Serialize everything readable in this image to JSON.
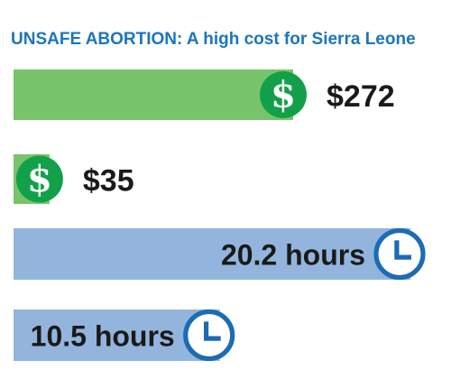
{
  "title": "UNSAFE ABORTION: A high cost for Sierra Leone",
  "colors": {
    "title": "#1c75bc",
    "money_bar": "#77c46b",
    "money_icon": "#12a04b",
    "time_bar": "#93b5dd",
    "time_icon": "#1b6cb4"
  },
  "chart_data": [
    {
      "type": "bar",
      "orientation": "horizontal",
      "categories": [
        "",
        ""
      ],
      "values": [
        272,
        35
      ],
      "value_labels": [
        "$272",
        "$35"
      ],
      "icon": "dollar-icon"
    },
    {
      "type": "bar",
      "orientation": "horizontal",
      "categories": [
        "",
        ""
      ],
      "values": [
        20.2,
        10.5
      ],
      "value_labels": [
        "20.2 hours",
        "10.5 hours"
      ],
      "icon": "clock-icon"
    }
  ]
}
